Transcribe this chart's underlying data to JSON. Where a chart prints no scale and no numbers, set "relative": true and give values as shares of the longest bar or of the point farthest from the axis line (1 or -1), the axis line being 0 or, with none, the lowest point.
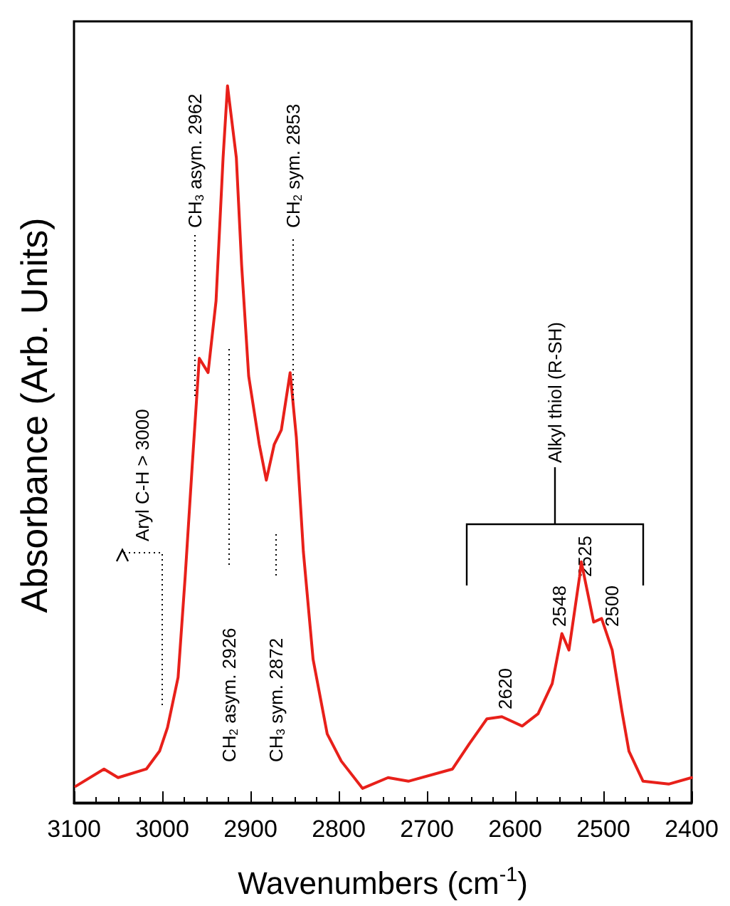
{
  "chart_data": {
    "type": "line",
    "xlabel": "Wavenumbers (cm$^{-1}$)",
    "ylabel": "Absorbance (Arb. Units)",
    "relative": true,
    "xlim": [
      3100,
      2400
    ],
    "xticks": [
      3100,
      3000,
      2900,
      2800,
      2700,
      2600,
      2500,
      2400
    ],
    "grid": false,
    "marker": "none",
    "line_style": "solid",
    "series": [
      {
        "color": "#e8201a",
        "x": [
          3098,
          3066,
          3050,
          3018,
          3003,
          2994,
          2982,
          2974,
          2966,
          2958,
          2948,
          2939,
          2931,
          2926,
          2916,
          2910,
          2902,
          2890,
          2882,
          2873,
          2865,
          2855,
          2848,
          2840,
          2829,
          2813,
          2797,
          2773,
          2744,
          2721,
          2671,
          2652,
          2632,
          2615,
          2592,
          2574,
          2558,
          2547,
          2539,
          2527,
          2525,
          2511,
          2502,
          2490,
          2479,
          2471,
          2455,
          2426,
          2400
        ],
        "values": [
          0.023,
          0.047,
          0.035,
          0.047,
          0.072,
          0.105,
          0.175,
          0.315,
          0.47,
          0.62,
          0.6,
          0.7,
          0.9,
          1,
          0.9,
          0.75,
          0.595,
          0.5,
          0.45,
          0.5,
          0.52,
          0.6,
          0.51,
          0.35,
          0.2,
          0.096,
          0.058,
          0.02,
          0.035,
          0.03,
          0.047,
          0.082,
          0.117,
          0.12,
          0.107,
          0.124,
          0.166,
          0.236,
          0.213,
          0.315,
          0.336,
          0.252,
          0.257,
          0.213,
          0.128,
          0.072,
          0.03,
          0.026,
          0.035
        ]
      }
    ],
    "annotations": [
      "CH$_{3}$ asym. 2962",
      "CH$_{2}$ sym. 2853",
      "CH$_{2}$ asym. 2926",
      "CH$_{3}$ sym. 2872",
      "Aryl C-H > 3000",
      "Alkyl thiol (R-SH)",
      "2620",
      "2548",
      "2525",
      "2500"
    ]
  }
}
